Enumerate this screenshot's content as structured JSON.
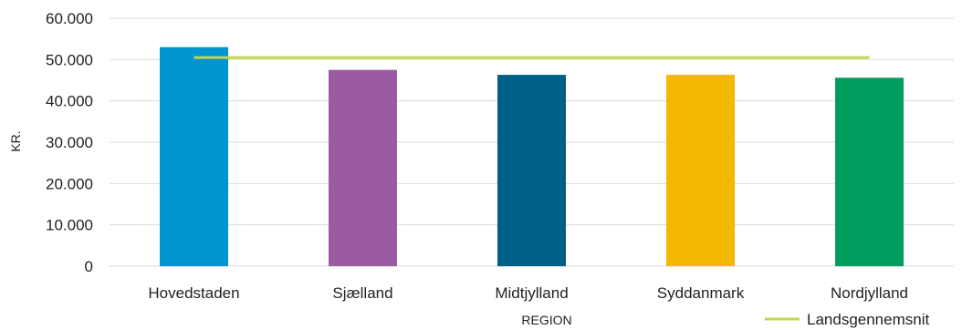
{
  "chart_data": {
    "type": "bar",
    "categories": [
      "Hovedstaden",
      "Sjælland",
      "Midtjylland",
      "Syddanmark",
      "Nordjylland"
    ],
    "values": [
      53000,
      47500,
      46300,
      46300,
      45600
    ],
    "bar_colors": [
      "#0095d0",
      "#9b5ba0",
      "#005f87",
      "#f4b800",
      "#009d5f"
    ],
    "reference_line": {
      "name": "Landsgennemsnit",
      "value": 50500,
      "color": "#c4d64f"
    },
    "y_ticks": [
      "0",
      "10.000",
      "20.000",
      "30.000",
      "40.000",
      "50.000",
      "60.000"
    ],
    "ylim": [
      0,
      60000
    ],
    "ylabel": "KR.",
    "xlabel": "REGION",
    "grid": true,
    "legend_position": "bottom-right"
  }
}
